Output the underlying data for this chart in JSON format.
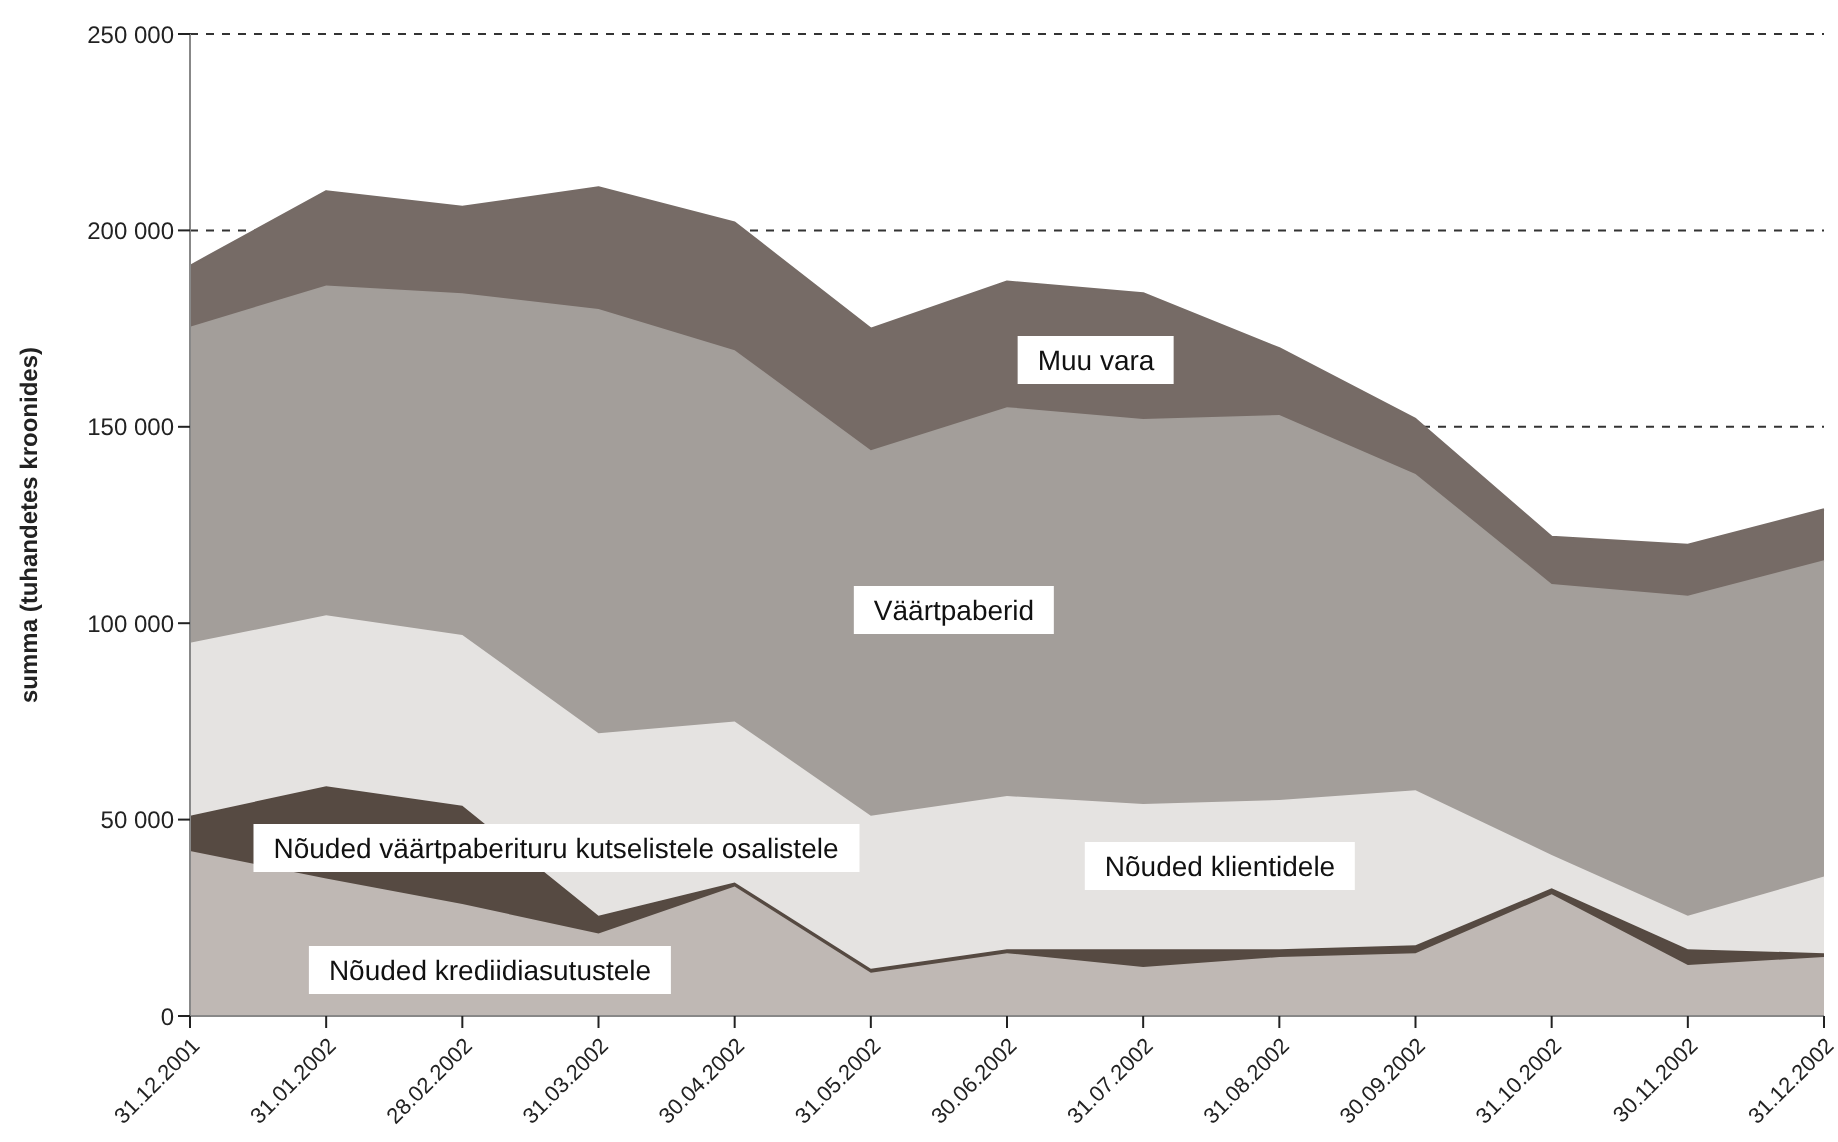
{
  "chart_data": {
    "type": "area",
    "stacked": true,
    "ylabel": "summa (tuhandetes kroonides)",
    "categories": [
      "31.12.2001",
      "31.01.2002",
      "28.02.2002",
      "31.03.2002",
      "30.04.2002",
      "31.05.2002",
      "30.06.2002",
      "31.07.2002",
      "31.08.2002",
      "30.09.2002",
      "31.10.2002",
      "30.11.2002",
      "31.12.2002"
    ],
    "series": [
      {
        "name": "Nõuded krediidiasutustele",
        "color": "#bfb8b4",
        "values": [
          42000,
          35000,
          28500,
          21000,
          33000,
          11000,
          16000,
          12500,
          15000,
          16000,
          31000,
          13000,
          15000
        ]
      },
      {
        "name": "Nõuded väärtpaberituru kutselistele osalistele",
        "color": "#564a42",
        "values": [
          9000,
          23500,
          25000,
          4500,
          1000,
          1000,
          1000,
          4500,
          2000,
          2000,
          1500,
          4000,
          1000
        ]
      },
      {
        "name": "Nõuded klientidele",
        "color": "#e5e3e1",
        "values": [
          44000,
          43500,
          43500,
          46500,
          41000,
          39000,
          39000,
          37000,
          38000,
          39500,
          8500,
          8500,
          19500
        ]
      },
      {
        "name": "Väärtpaberid",
        "color": "#a39e9a",
        "values": [
          80500,
          84000,
          87000,
          108000,
          94500,
          93000,
          99000,
          98000,
          98000,
          80500,
          69000,
          81500,
          80500
        ]
      },
      {
        "name": "Muu vara",
        "color": "#766b66",
        "values": [
          15500,
          24000,
          22000,
          31000,
          32500,
          31000,
          32000,
          32000,
          17000,
          14000,
          12000,
          13000,
          13000
        ]
      }
    ],
    "ylim": [
      0,
      250000
    ],
    "yticks": [
      {
        "value": 0,
        "label": "0"
      },
      {
        "value": 50000,
        "label": "50 000"
      },
      {
        "value": 100000,
        "label": "100 000"
      },
      {
        "value": 150000,
        "label": "150 000"
      },
      {
        "value": 200000,
        "label": "200 000"
      },
      {
        "value": 250000,
        "label": "250 000"
      }
    ],
    "grid": "y",
    "legend": false
  }
}
